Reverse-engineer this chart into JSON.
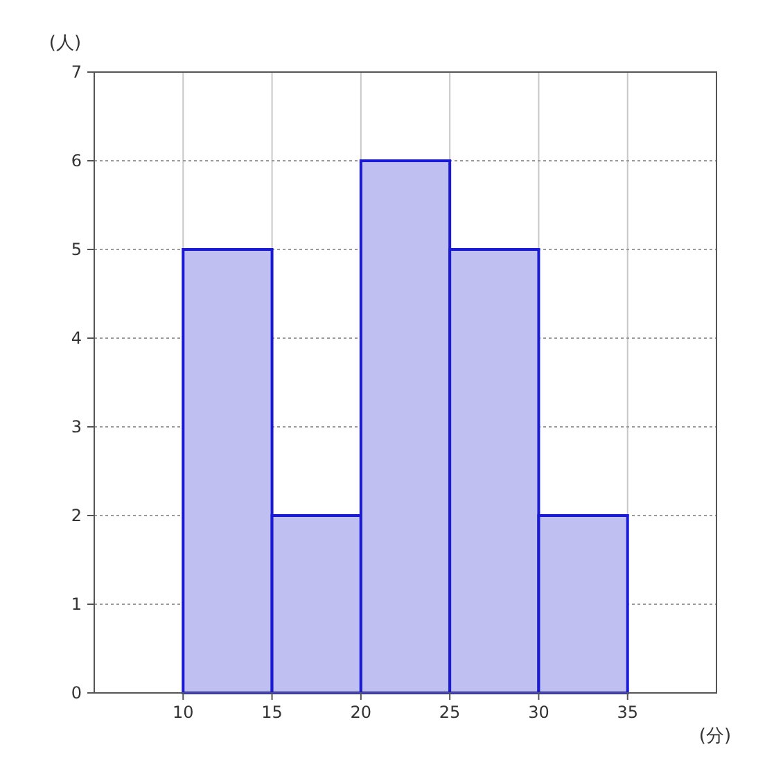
{
  "chart_data": {
    "type": "histogram",
    "xlabel": "(分)",
    "ylabel": "(人)",
    "bins": [
      10,
      15,
      20,
      25,
      30,
      35
    ],
    "values": [
      5,
      2,
      6,
      5,
      2
    ],
    "color": "#bfbff2",
    "xlim": [
      5,
      40
    ],
    "xticks": [
      10,
      15,
      20,
      25,
      30,
      35
    ],
    "ylim": [
      0,
      7
    ],
    "yticks": [
      0,
      1,
      2,
      3,
      4,
      5,
      6,
      7
    ],
    "grid": true
  }
}
